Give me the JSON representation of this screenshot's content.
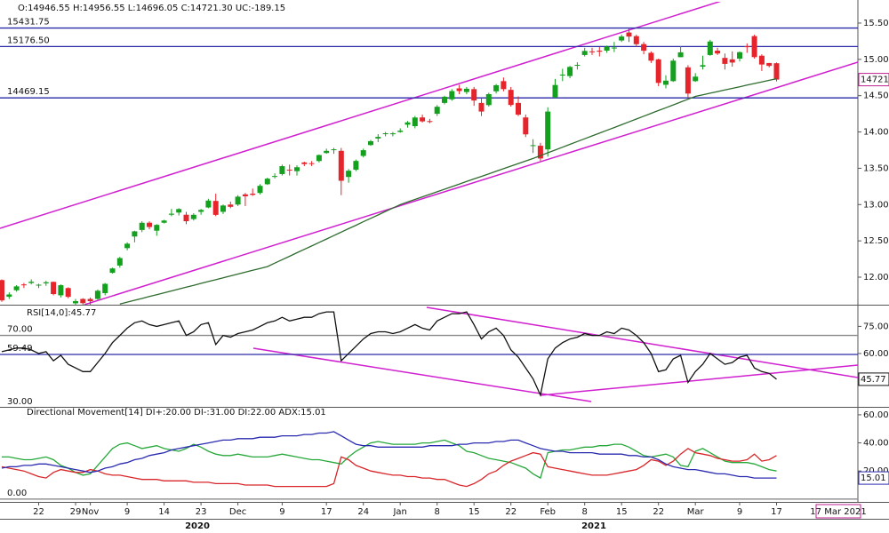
{
  "chart_data": [
    {
      "type": "candlestick",
      "title": "O:14946.55 H:14956.55 L:14696.05 C:14721.30 UC:-189.15",
      "categories": [
        null,
        null,
        null,
        null,
        null,
        "22",
        null,
        null,
        null,
        null,
        "29",
        null,
        "Nov",
        null,
        null,
        null,
        null,
        "9",
        null,
        null,
        null,
        null,
        "14",
        null,
        null,
        null,
        null,
        "23",
        null,
        null,
        null,
        null,
        "Dec",
        null,
        null,
        null,
        null,
        null,
        "9",
        null,
        null,
        null,
        null,
        null,
        "17",
        null,
        null,
        null,
        null,
        "24",
        null,
        null,
        null,
        null,
        "Jan",
        null,
        null,
        null,
        null,
        "8",
        null,
        null,
        null,
        null,
        "15",
        null,
        null,
        null,
        null,
        "22",
        null,
        null,
        null,
        null,
        "Feb",
        null,
        null,
        null,
        null,
        "8",
        null,
        null,
        null,
        null,
        "15",
        null,
        null,
        null,
        null,
        "22",
        null,
        null,
        null,
        null,
        "Mar",
        null,
        null,
        null,
        null,
        null,
        "9",
        null,
        null,
        null,
        null,
        "17"
      ],
      "year_labels": [
        "2020",
        "2021"
      ],
      "cursor_label": "17 Mar 2021",
      "open": [
        11960,
        11730,
        11820,
        11900,
        11920,
        11890,
        11915,
        11935,
        11750,
        11850,
        11640,
        11700,
        11700,
        11700,
        11780,
        12060,
        12160,
        12400,
        12560,
        12650,
        12750,
        12640,
        12750,
        12860,
        12890,
        12860,
        12800,
        12900,
        12960,
        13050,
        12900,
        13000,
        13000,
        13140,
        13150,
        13160,
        13280,
        13390,
        13420,
        13480,
        13460,
        13580,
        13570,
        13600,
        13710,
        13760,
        13740,
        13380,
        13480,
        13670,
        13820,
        13910,
        13980,
        13970,
        14000,
        14100,
        14080,
        14200,
        14150,
        14250,
        14400,
        14450,
        14600,
        14550,
        14590,
        14400,
        14370,
        14560,
        14700,
        14580,
        14400,
        14200,
        13810,
        13810,
        13760,
        14480,
        14790,
        14770,
        14920,
        15060,
        15110,
        15120,
        15120,
        15150,
        15260,
        15370,
        15320,
        15210,
        15090,
        15000,
        14650,
        14700,
        15030,
        14890,
        14700,
        14900,
        15060,
        15120,
        15020,
        15000,
        15010,
        15180,
        15320,
        15050,
        14950,
        14946.55
      ],
      "high": [
        11970,
        11790,
        11890,
        11920,
        11970,
        11910,
        11950,
        11940,
        11900,
        11860,
        11700,
        11710,
        11720,
        11830,
        11920,
        12130,
        12280,
        12480,
        12640,
        12770,
        12770,
        12730,
        12790,
        12940,
        12950,
        12900,
        12880,
        12940,
        13080,
        13150,
        13000,
        13040,
        13130,
        13160,
        13220,
        13280,
        13370,
        13430,
        13550,
        13550,
        13540,
        13590,
        13600,
        13690,
        13770,
        13780,
        13780,
        13490,
        13620,
        13770,
        13890,
        13970,
        14000,
        14000,
        14050,
        14150,
        14220,
        14240,
        14180,
        14370,
        14500,
        14590,
        14650,
        14620,
        14620,
        14460,
        14540,
        14660,
        14750,
        14620,
        14490,
        14240,
        13900,
        13850,
        14340,
        14730,
        14870,
        14910,
        14960,
        15160,
        15160,
        15170,
        15190,
        15240,
        15340,
        15430,
        15340,
        15240,
        15110,
        15010,
        14780,
        15010,
        15180,
        14920,
        14810,
        15050,
        15270,
        15160,
        15080,
        15110,
        15110,
        15220,
        15340,
        15070,
        14950,
        14956.55
      ],
      "low": [
        11660,
        11700,
        11800,
        11850,
        11900,
        11850,
        11880,
        11750,
        11720,
        11710,
        11610,
        11620,
        11560,
        11690,
        11750,
        12050,
        12130,
        12370,
        12480,
        12620,
        12660,
        12570,
        12740,
        12840,
        12850,
        12730,
        12780,
        12860,
        12950,
        12840,
        12870,
        12950,
        12980,
        12980,
        13120,
        13140,
        13270,
        13360,
        13400,
        13400,
        13400,
        13530,
        13530,
        13580,
        13700,
        13700,
        13130,
        13300,
        13460,
        13650,
        13810,
        13860,
        13940,
        13940,
        13990,
        14060,
        14050,
        14130,
        14120,
        14220,
        14380,
        14430,
        14520,
        14520,
        14360,
        14220,
        14350,
        14530,
        14560,
        14350,
        14220,
        13930,
        13710,
        13600,
        13660,
        14470,
        14700,
        14740,
        14860,
        15040,
        15060,
        15040,
        15090,
        15100,
        15240,
        15240,
        15170,
        15070,
        14950,
        14630,
        14600,
        14690,
        15030,
        14470,
        14690,
        14860,
        15050,
        15060,
        14860,
        14900,
        14970,
        15090,
        15010,
        14840,
        14890,
        14696.05
      ],
      "close": [
        11680,
        11762,
        11873,
        11896,
        11937,
        11896,
        11930,
        11767,
        11889,
        11729,
        11670,
        11642,
        11669,
        11813,
        11908,
        12120,
        12263,
        12461,
        12631,
        12749,
        12691,
        12720,
        12780,
        12874,
        12938,
        12771,
        12859,
        12926,
        13055,
        12858,
        12987,
        12969,
        13109,
        13114,
        13134,
        13258,
        13356,
        13393,
        13529,
        13478,
        13514,
        13558,
        13567,
        13682,
        13740,
        13761,
        13328,
        13466,
        13601,
        13749,
        13873,
        13932,
        13982,
        13981,
        14018,
        14132,
        14199,
        14146,
        14137,
        14347,
        14485,
        14563,
        14564,
        14595,
        14433,
        14281,
        14521,
        14644,
        14590,
        14372,
        14238,
        13967,
        13818,
        13635,
        14281,
        14647,
        14790,
        14896,
        14924,
        15116,
        15109,
        15106,
        15173,
        15163,
        15315,
        15314,
        15209,
        15119,
        14982,
        14676,
        14707,
        14982,
        15097,
        14529,
        14762,
        14920,
        15246,
        15081,
        14938,
        14956,
        15099,
        15174,
        15031,
        14929,
        14910,
        14721.3
      ],
      "up_color": "#14a01e",
      "down_color": "#e5242b",
      "moving_average": {
        "color": "#2e6b2e",
        "values": [
          null,
          null,
          null,
          null,
          null,
          null,
          null,
          null,
          null,
          null,
          null,
          null,
          null,
          null,
          null,
          null,
          11630,
          11656,
          11682,
          11707,
          11733,
          11759,
          11785,
          11811,
          11836,
          11862,
          11888,
          11914,
          11940,
          11965,
          11991,
          12017,
          12043,
          12069,
          12094,
          12120,
          12146,
          12193,
          12241,
          12288,
          12336,
          12383,
          12430,
          12478,
          12525,
          12573,
          12620,
          12668,
          12715,
          12763,
          12810,
          12857,
          12905,
          12952,
          13000,
          13035,
          13071,
          13106,
          13141,
          13176,
          13212,
          13247,
          13282,
          13318,
          13353,
          13388,
          13423,
          13459,
          13494,
          13529,
          13565,
          13600,
          13635,
          13674,
          13713,
          13751,
          13790,
          13829,
          13868,
          13906,
          13945,
          13984,
          14023,
          14061,
          14100,
          14139,
          14178,
          14217,
          14256,
          14295,
          14334,
          14373,
          14412,
          14451,
          14490,
          14512,
          14534,
          14556,
          14578,
          14600,
          14622,
          14645,
          14667,
          14689,
          14711,
          14733
        ]
      },
      "levels": [
        15431.75,
        {
          "value": 15176.5,
          "label": "15176.50"
        },
        14469.15
      ],
      "level_colors": [
        "#2a2aa8",
        "#2a2aa8",
        "#2a2aa8"
      ],
      "ylim": [
        11633,
        15781
      ],
      "yticks": [
        {
          "value": 12000,
          "label": "12.00K"
        },
        {
          "value": 12500,
          "label": "12.50K"
        },
        {
          "value": 13000,
          "label": "13.00K"
        },
        {
          "value": 13500,
          "label": "13.50K"
        },
        {
          "value": 14000,
          "label": "14.00K"
        },
        {
          "value": 14500,
          "label": "14.50K"
        },
        {
          "value": 15000,
          "label": "15.00K"
        },
        {
          "value": 15500,
          "label": "15.50K"
        }
      ]
    },
    {
      "type": "line",
      "title": "RSI[14,0]:45.77",
      "series": [
        {
          "color": "#111111",
          "values": [
            61,
            62,
            63,
            63,
            62,
            60,
            61,
            56,
            59,
            54,
            52,
            50,
            50,
            55,
            60,
            66,
            70,
            74,
            77,
            78,
            76,
            75,
            76,
            77,
            78,
            70,
            72,
            76,
            77,
            65,
            70,
            69,
            71,
            72,
            73,
            75,
            77,
            78,
            80,
            78,
            79,
            80,
            80,
            82,
            83,
            83,
            56,
            60,
            64,
            68,
            71,
            72,
            72,
            71,
            72,
            74,
            76,
            74,
            73,
            78,
            80,
            82,
            82,
            83,
            76,
            68,
            72,
            74,
            70,
            62,
            58,
            52,
            46,
            37,
            57,
            63,
            66,
            68,
            69,
            71,
            70,
            70,
            72,
            71,
            74,
            73,
            70,
            66,
            60,
            50,
            51,
            57,
            59,
            44,
            50,
            54,
            60,
            57,
            54,
            55,
            58,
            59,
            52,
            50,
            49,
            45.77
          ]
        }
      ],
      "levels": [
        {
          "value": 70,
          "label": "70.00"
        },
        59.49,
        {
          "value": 30,
          "label": "30.00"
        }
      ],
      "level_colors": [
        "#888888",
        "#2a2aa8",
        "#888888"
      ],
      "ylim": [
        30,
        86
      ],
      "yticks": [
        {
          "value": 45,
          "label": "45.00"
        },
        {
          "value": 60,
          "label": "60.00"
        },
        {
          "value": 75,
          "label": "75.00"
        }
      ]
    },
    {
      "type": "line",
      "title": "Directional Movement[14] DI+:20.00 DI-:31.00 DI:22.00 ADX:15.01",
      "series": [
        {
          "color": "#27a83a",
          "values": [
            30,
            30,
            29,
            28,
            28,
            29,
            30,
            28,
            24,
            22,
            19,
            17,
            18,
            24,
            30,
            36,
            39,
            40,
            38,
            36,
            37,
            38,
            36,
            35,
            34,
            36,
            39,
            37,
            34,
            32,
            31,
            31,
            32,
            31,
            30,
            30,
            30,
            31,
            32,
            31,
            30,
            29,
            28,
            28,
            27,
            26,
            25,
            30,
            34,
            37,
            40,
            41,
            40,
            39,
            39,
            39,
            39,
            40,
            40,
            41,
            42,
            40,
            38,
            34,
            33,
            31,
            29,
            28,
            27,
            26,
            24,
            22,
            18,
            15,
            33,
            34,
            35,
            35,
            36,
            37,
            37,
            38,
            38,
            39,
            39,
            37,
            34,
            31,
            30,
            31,
            32,
            30,
            24,
            23,
            34,
            36,
            33,
            30,
            27,
            26,
            26,
            26,
            25,
            23,
            21,
            20
          ]
        },
        {
          "color": "#d8262a",
          "values": [
            23,
            22,
            21,
            20,
            18,
            16,
            15,
            19,
            21,
            20,
            19,
            19,
            21,
            20,
            18,
            17,
            17,
            16,
            15,
            14,
            14,
            14,
            13,
            13,
            13,
            13,
            12,
            12,
            12,
            11,
            11,
            11,
            11,
            10,
            10,
            10,
            10,
            9,
            9,
            9,
            9,
            9,
            9,
            9,
            9,
            11,
            30,
            28,
            24,
            22,
            20,
            19,
            18,
            17,
            17,
            16,
            16,
            15,
            15,
            14,
            14,
            12,
            10,
            9,
            11,
            14,
            18,
            20,
            24,
            27,
            29,
            31,
            33,
            32,
            23,
            22,
            21,
            20,
            19,
            18,
            17,
            17,
            17,
            18,
            19,
            20,
            21,
            24,
            28,
            27,
            24,
            27,
            32,
            36,
            33,
            32,
            31,
            29,
            28,
            27,
            27,
            28,
            32,
            27,
            28,
            31
          ]
        },
        {
          "color": "#2b2bb0",
          "values": [
            22,
            23,
            23,
            24,
            24,
            25,
            25,
            24,
            23,
            22,
            21,
            20,
            19,
            20,
            22,
            23,
            25,
            26,
            28,
            29,
            31,
            32,
            33,
            35,
            36,
            37,
            38,
            39,
            40,
            41,
            42,
            42,
            43,
            43,
            43,
            44,
            44,
            44,
            45,
            45,
            45,
            46,
            46,
            47,
            47,
            48,
            45,
            42,
            39,
            38,
            38,
            37,
            37,
            37,
            37,
            37,
            37,
            37,
            38,
            38,
            38,
            38,
            39,
            39,
            40,
            40,
            40,
            41,
            41,
            42,
            42,
            40,
            38,
            36,
            35,
            34,
            34,
            33,
            33,
            33,
            33,
            32,
            32,
            32,
            32,
            31,
            31,
            30,
            30,
            28,
            25,
            23,
            22,
            21,
            21,
            20,
            19,
            18,
            18,
            17,
            16,
            16,
            15,
            15,
            15,
            15.01
          ]
        }
      ],
      "levels": [
        {
          "value": 0,
          "label": "0.00"
        }
      ],
      "level_colors": [
        "#888888"
      ],
      "ylim": [
        -2,
        65
      ],
      "yticks": [
        {
          "value": 20,
          "label": "20.00"
        },
        {
          "value": 40,
          "label": "40.00"
        },
        {
          "value": 60,
          "label": "60.00"
        }
      ]
    }
  ]
}
